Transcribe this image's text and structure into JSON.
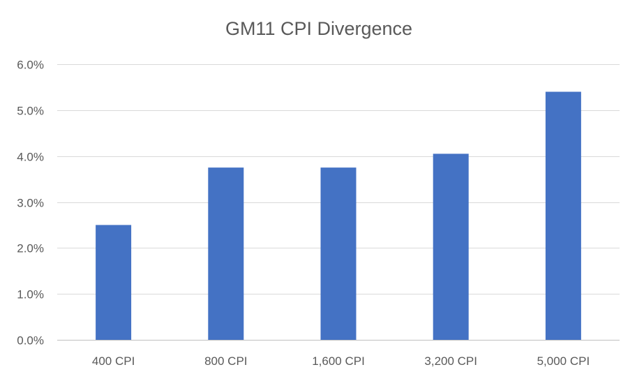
{
  "chart_data": {
    "type": "bar",
    "title": "GM11 CPI Divergence",
    "xlabel": "",
    "ylabel": "",
    "categories": [
      "400 CPI",
      "800 CPI",
      "1,600 CPI",
      "3,200 CPI",
      "5,000 CPI"
    ],
    "series": [
      {
        "values": [
          0.025,
          0.0375,
          0.0375,
          0.0405,
          0.054
        ]
      }
    ],
    "ylim": [
      0,
      0.06
    ],
    "yticks": [
      0,
      0.01,
      0.02,
      0.03,
      0.04,
      0.05,
      0.06
    ],
    "ytick_labels": [
      "0.0%",
      "1.0%",
      "2.0%",
      "3.0%",
      "4.0%",
      "5.0%",
      "6.0%"
    ],
    "grid": true,
    "legend": "none",
    "colors": {
      "bar": "#4472c4",
      "gridline": "#d9d9d9",
      "axis": "#bfbfbf",
      "text": "#595959"
    }
  }
}
